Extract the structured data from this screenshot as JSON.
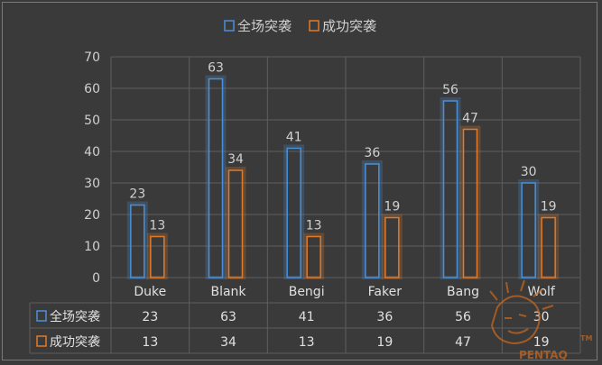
{
  "chart_data": {
    "type": "bar",
    "categories": [
      "Duke",
      "Blank",
      "Bengi",
      "Faker",
      "Bang",
      "Wolf"
    ],
    "series": [
      {
        "name": "全场突袭",
        "color": "#4a90d9",
        "values": [
          23,
          63,
          41,
          36,
          56,
          30
        ]
      },
      {
        "name": "成功突袭",
        "color": "#e07b2a",
        "values": [
          13,
          34,
          13,
          19,
          47,
          19
        ]
      }
    ],
    "ylim": [
      0,
      70
    ],
    "yticks": [
      0,
      10,
      20,
      30,
      40,
      50,
      60,
      70
    ],
    "grid": true,
    "legend": "top-center",
    "data_table": true
  },
  "watermark": {
    "text": "PENTAQ",
    "superscript": "TM"
  }
}
